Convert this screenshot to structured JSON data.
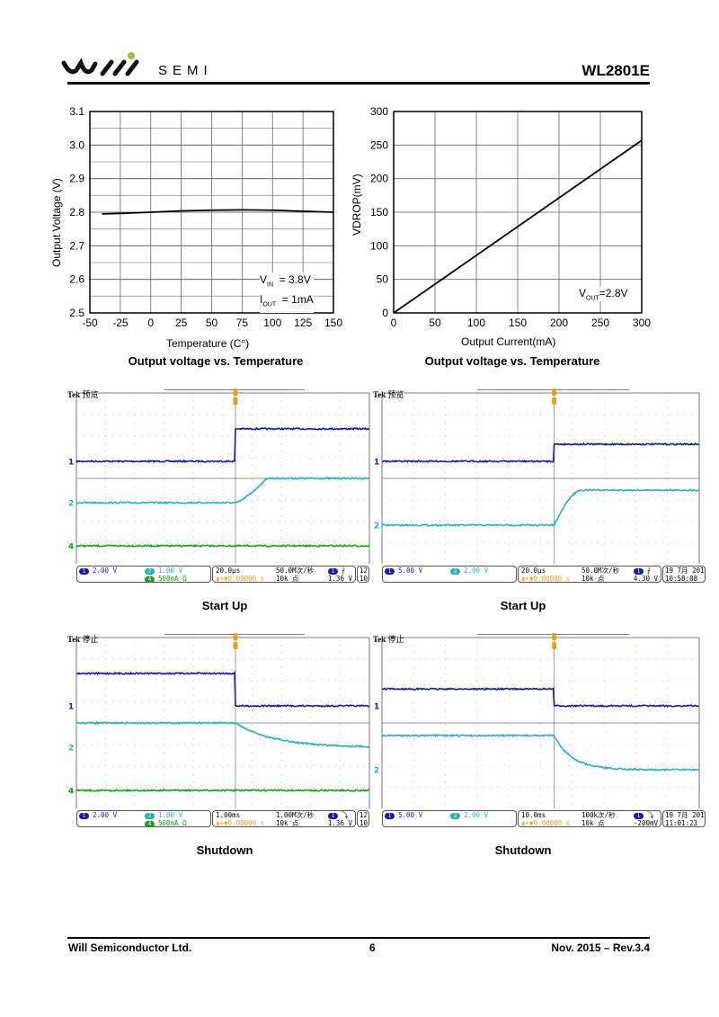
{
  "header": {
    "brand_text": "SEMI",
    "logo_text": "WILL SEMI",
    "part_number": "WL2801E"
  },
  "chart_data": [
    {
      "type": "line",
      "title": "Output voltage vs. Temperature",
      "xlabel": "Temperature (C°)",
      "ylabel": "Output Voltage (V)",
      "xlim": [
        -50,
        150
      ],
      "ylim": [
        2.5,
        3.1
      ],
      "xticks": [
        "-50",
        "-25",
        "0",
        "25",
        "50",
        "75",
        "100",
        "125",
        "150"
      ],
      "yticks": [
        "2.5",
        "2.6",
        "2.7",
        "2.8",
        "2.9",
        "3.0",
        "3.1"
      ],
      "x": [
        -40,
        -20,
        0,
        25,
        50,
        75,
        100,
        125,
        150
      ],
      "y": [
        2.795,
        2.797,
        2.8,
        2.804,
        2.806,
        2.807,
        2.806,
        2.803,
        2.8
      ],
      "annotation": {
        "l1a": "V",
        "l1s": "IN",
        "l1b": "= 3.8V",
        "l2a": "I",
        "l2s": "OUT",
        "l2b": "= 1mA"
      },
      "grid": true
    },
    {
      "type": "line",
      "title": "Output voltage vs. Temperature",
      "xlabel": "Output Current(mA)",
      "ylabel": "VDROP(mV)",
      "xlim": [
        0,
        300
      ],
      "ylim": [
        0,
        300
      ],
      "xticks": [
        "0",
        "50",
        "100",
        "150",
        "200",
        "250",
        "300"
      ],
      "yticks": [
        "0",
        "50",
        "100",
        "150",
        "200",
        "250",
        "300"
      ],
      "x": [
        0,
        300
      ],
      "y": [
        0,
        257
      ],
      "annotation": {
        "a": "V",
        "s": "OUT",
        "b": "=2.8V"
      },
      "grid": true
    }
  ],
  "scopes": [
    {
      "caption": "Start Up",
      "tek": "Tek",
      "state": "预览",
      "trigger_pos": 5.43,
      "traces": [
        {
          "ch": "1",
          "color": "#1a1aa8",
          "before": 3.2,
          "after": 1.68,
          "t0": 5.43,
          "t1": 5.43,
          "shape": "step",
          "marker": 3.2
        },
        {
          "ch": "2",
          "color": "#22b5b5",
          "before": 5.14,
          "after": 4.0,
          "t0": 5.45,
          "t1": 6.5,
          "shape": "ramp",
          "marker": 5.14
        },
        {
          "ch": "4",
          "color": "#18a018",
          "before": 7.16,
          "after": 7.16,
          "t0": 5.4,
          "t1": 5.4,
          "shape": "step",
          "marker": 7.16
        }
      ],
      "readout": {
        "ch1": "2.00 V",
        "ch2": "1.00 V",
        "ch4": "500mA Ω",
        "timebase": "20.0µs",
        "offset": "▮+▼0.00000 s",
        "rate": "50.0M次/秒",
        "points": "10k 点",
        "trig_sym": "⨍",
        "trig_level": "1.36 V",
        "date": "12",
        "time": "10"
      }
    },
    {
      "caption": "Start Up",
      "tek": "Tek",
      "state": "预览",
      "trigger_pos": 5.43,
      "traces": [
        {
          "ch": "1",
          "color": "#1a1aa8",
          "before": 3.2,
          "after": 2.4,
          "t0": 5.43,
          "t1": 5.43,
          "shape": "step",
          "marker": 3.2
        },
        {
          "ch": "2",
          "color": "#22b5b5",
          "before": 6.19,
          "after": 4.55,
          "t0": 5.43,
          "t1": 6.3,
          "shape": "rise",
          "marker": 6.19
        }
      ],
      "readout": {
        "ch1": "5.00 V",
        "ch2": "2.00 V",
        "timebase": "20.0µs",
        "offset": "▮+▼0.00000 s",
        "rate": "50.0M次/秒",
        "points": "10k 点",
        "trig_sym": "⨍",
        "trig_level": "4.30 V",
        "date": "19 7月  2012",
        "time": "10:58:08"
      }
    },
    {
      "caption": "Shutdown",
      "tek": "Tek",
      "state": "停止",
      "trigger_pos": 5.43,
      "traces": [
        {
          "ch": "1",
          "color": "#1a1aa8",
          "before": 1.68,
          "after": 3.2,
          "t0": 5.43,
          "t1": 5.43,
          "shape": "step",
          "marker": 3.2
        },
        {
          "ch": "2",
          "color": "#22b5b5",
          "before": 4.0,
          "after": 5.14,
          "t0": 5.43,
          "t1": 10,
          "shape": "decay",
          "tau": 1.3,
          "marker": 5.14
        },
        {
          "ch": "4",
          "color": "#18a018",
          "before": 7.16,
          "after": 7.16,
          "t0": 5.4,
          "t1": 5.4,
          "shape": "step",
          "marker": 7.16
        }
      ],
      "readout": {
        "ch1": "2.00 V",
        "ch2": "1.00 V",
        "ch4": "500mA Ω",
        "timebase": "1.00ms",
        "offset": "▮+▼0.00000 s",
        "rate": "1.00M次/秒",
        "points": "10k 点",
        "trig_sym": "⤵",
        "trig_level": "1.36 V",
        "date": "12",
        "time": "10"
      }
    },
    {
      "caption": "Shutdown",
      "tek": "Tek",
      "state": "停止",
      "trigger_pos": 5.43,
      "traces": [
        {
          "ch": "1",
          "color": "#1a1aa8",
          "before": 2.41,
          "after": 3.2,
          "t0": 5.43,
          "t1": 5.43,
          "shape": "step",
          "marker": 3.2
        },
        {
          "ch": "2",
          "color": "#22b5b5",
          "before": 4.59,
          "after": 6.19,
          "t0": 5.43,
          "t1": 10,
          "shape": "decay",
          "tau": 0.55,
          "marker": 6.19
        }
      ],
      "readout": {
        "ch1": "5.00 V",
        "ch2": "2.00 V",
        "timebase": "10.0ms",
        "offset": "▮+▼0.00000 s",
        "rate": "100k次/秒",
        "points": "10k 点",
        "trig_sym": "⤵",
        "trig_level": "-200mV",
        "date": "19 7月  2012",
        "time": "11:01:23"
      }
    }
  ],
  "footer": {
    "company": "Will Semiconductor Ltd.",
    "page": "6",
    "revision": "Nov. 2015 – Rev.3.4"
  }
}
